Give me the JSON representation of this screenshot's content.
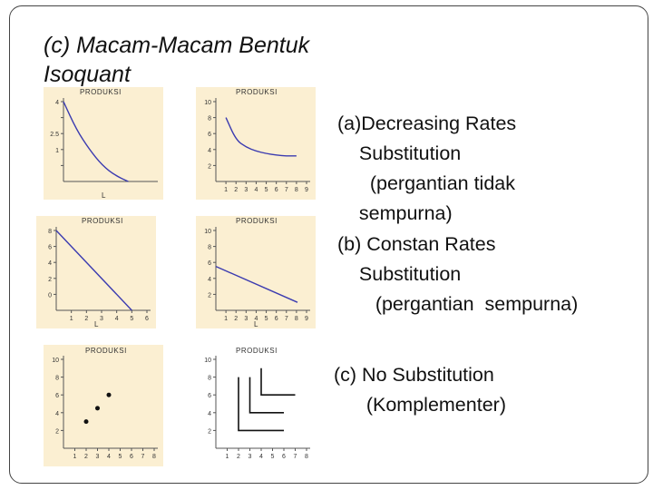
{
  "title": "(c) Macam-Macam Bentuk Isoquant",
  "panel_label": "PRODUKSI",
  "desc_a": [
    "(a)Decreasing Rates",
    "    Substitution",
    "      (pergantian tidak",
    "    sempurna)"
  ],
  "desc_b": [
    "(b) Constan Rates",
    "    Substitution",
    "       (pergantian  sempurna)"
  ],
  "desc_c": [
    "(c) No Substitution",
    "      (Komplementer)"
  ],
  "colors": {
    "curve": "#3b3bb0",
    "panel_bg": "#fbefd2",
    "axis": "#555555",
    "marker": "#111111"
  },
  "chart_data": [
    {
      "type": "line",
      "x": [
        0,
        1,
        2,
        3,
        4,
        5
      ],
      "y": [
        4,
        2.6,
        1.6,
        0.8,
        0.3,
        0
      ],
      "xlim": [
        0,
        7
      ],
      "ylim": [
        0,
        4
      ],
      "yticks": [
        "4",
        "",
        "2.5",
        "1",
        ""
      ],
      "xlabel": "L"
    },
    {
      "type": "line",
      "x": [
        1,
        2,
        3,
        4,
        5,
        6,
        7,
        8
      ],
      "y": [
        8,
        5.2,
        4.3,
        3.8,
        3.5,
        3.3,
        3.2,
        3.2
      ],
      "xlim": [
        0,
        9
      ],
      "ylim": [
        0,
        10
      ],
      "xticks": [
        "1",
        "2",
        "3",
        "4",
        "5",
        "6",
        "7",
        "8",
        "9"
      ],
      "yticks": [
        "10",
        "8",
        "6",
        "4",
        "2"
      ]
    },
    {
      "type": "line",
      "x": [
        0,
        5
      ],
      "y": [
        8,
        0
      ],
      "xlim": [
        0,
        6
      ],
      "ylim": [
        0,
        8
      ],
      "xticks": [
        "1",
        "2",
        "3",
        "4",
        "5",
        "6"
      ],
      "yticks": [
        "8",
        "6",
        "4",
        "2",
        "0"
      ],
      "xlabel": "L"
    },
    {
      "type": "line",
      "x": [
        0,
        9
      ],
      "y": [
        5.5,
        1
      ],
      "xlim": [
        0,
        10
      ],
      "ylim": [
        0,
        10
      ],
      "xticks": [
        "1",
        "2",
        "3",
        "4",
        "5",
        "6",
        "7",
        "8",
        "9"
      ],
      "yticks": [
        "10",
        "8",
        "6",
        "4",
        "2"
      ],
      "xlabel": "L"
    },
    {
      "type": "scatter",
      "x": [
        2,
        3,
        4
      ],
      "y": [
        3,
        4.5,
        6
      ],
      "xlim": [
        0,
        8
      ],
      "ylim": [
        0,
        10
      ],
      "xticks": [
        "1",
        "2",
        "3",
        "4",
        "5",
        "6",
        "7",
        "8"
      ],
      "yticks": [
        "10",
        "8",
        "6",
        "4",
        "2"
      ]
    },
    {
      "type": "line",
      "series": [
        {
          "x": [
            2,
            2,
            6
          ],
          "y": [
            8,
            2,
            2
          ]
        },
        {
          "x": [
            3,
            3,
            6
          ],
          "y": [
            8,
            4,
            4
          ]
        },
        {
          "x": [
            4,
            4,
            7
          ],
          "y": [
            9,
            6,
            6
          ]
        }
      ],
      "xlim": [
        0,
        8
      ],
      "ylim": [
        0,
        10
      ],
      "xticks": [
        "1",
        "2",
        "3",
        "4",
        "5",
        "6",
        "7",
        "8"
      ],
      "yticks": [
        "10",
        "8",
        "6",
        "4",
        "2"
      ]
    }
  ]
}
